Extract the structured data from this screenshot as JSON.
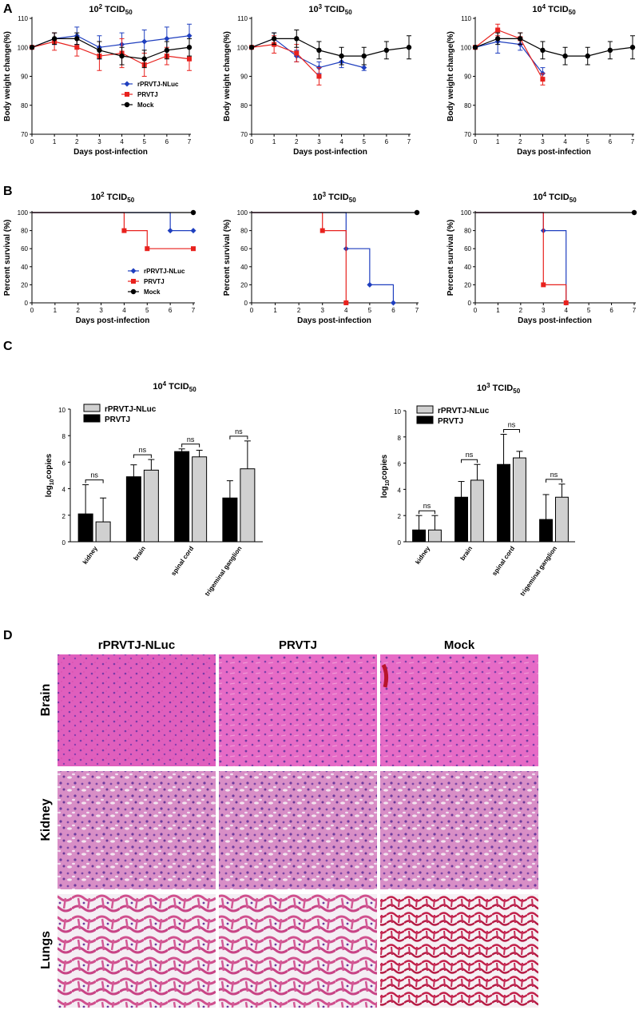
{
  "panel_letters": [
    "A",
    "B",
    "C",
    "D"
  ],
  "colors": {
    "rPRVTJ-NLuc": "#1f3fbf",
    "PRVTJ": "#e8211d",
    "Mock": "#000000",
    "bar_prvtj": "#000000",
    "bar_nluc": "#d0d0d0"
  },
  "chart_data": [
    {
      "panel": "A",
      "type": "line",
      "title": "10^2 TCID50",
      "xlabel": "Days post-infection",
      "ylabel": "Body weight change(%)",
      "xlim": [
        0,
        7
      ],
      "ylim": [
        70,
        110
      ],
      "xticks": [
        "0",
        "1",
        "2",
        "3",
        "4",
        "5",
        "6",
        "7"
      ],
      "yticks": [
        "70",
        "80",
        "90",
        "100",
        "110"
      ],
      "legend": [
        "rPRVTJ-NLuc",
        "PRVTJ",
        "Mock"
      ],
      "series": [
        {
          "name": "rPRVTJ-NLuc",
          "x": [
            0,
            1,
            2,
            3,
            4,
            5,
            6,
            7
          ],
          "y": [
            100,
            103,
            104,
            100,
            101,
            102,
            103,
            104
          ],
          "err": [
            0,
            2,
            3,
            4,
            4,
            4,
            4,
            4
          ]
        },
        {
          "name": "PRVTJ",
          "x": [
            0,
            1,
            2,
            3,
            4,
            5,
            6,
            7
          ],
          "y": [
            100,
            102,
            100,
            97,
            98,
            94,
            97,
            96
          ],
          "err": [
            0,
            3,
            3,
            5,
            5,
            4,
            3,
            4
          ]
        },
        {
          "name": "Mock",
          "x": [
            0,
            1,
            2,
            3,
            4,
            5,
            6,
            7
          ],
          "y": [
            100,
            103,
            103,
            99,
            97,
            96,
            99,
            100
          ],
          "err": [
            0,
            2,
            2,
            3,
            3,
            3,
            3,
            3
          ]
        }
      ]
    },
    {
      "panel": "A",
      "type": "line",
      "title": "10^3 TCID50",
      "xlabel": "Days post-infection",
      "ylabel": "Body weight change(%)",
      "xlim": [
        0,
        7
      ],
      "ylim": [
        70,
        110
      ],
      "xticks": [
        "0",
        "1",
        "2",
        "3",
        "4",
        "5",
        "6",
        "7"
      ],
      "yticks": [
        "70",
        "80",
        "90",
        "100",
        "110"
      ],
      "series": [
        {
          "name": "rPRVTJ-NLuc",
          "x": [
            0,
            1,
            2,
            3,
            4,
            5
          ],
          "y": [
            100,
            103,
            97,
            93,
            95,
            93
          ],
          "err": [
            0,
            2,
            2,
            2,
            2,
            1
          ]
        },
        {
          "name": "PRVTJ",
          "x": [
            0,
            1,
            2,
            3
          ],
          "y": [
            100,
            101,
            98,
            90
          ],
          "err": [
            0,
            3,
            3,
            3
          ]
        },
        {
          "name": "Mock",
          "x": [
            0,
            1,
            2,
            3,
            4,
            5,
            6,
            7
          ],
          "y": [
            100,
            103,
            103,
            99,
            97,
            97,
            99,
            100
          ],
          "err": [
            0,
            2,
            3,
            3,
            3,
            3,
            3,
            4
          ]
        }
      ]
    },
    {
      "panel": "A",
      "type": "line",
      "title": "10^4 TCID50",
      "xlabel": "Days post-infection",
      "ylabel": "Body weight change(%)",
      "xlim": [
        0,
        7
      ],
      "ylim": [
        70,
        110
      ],
      "xticks": [
        "0",
        "1",
        "2",
        "3",
        "4",
        "5",
        "6",
        "7"
      ],
      "yticks": [
        "70",
        "80",
        "90",
        "100",
        "110"
      ],
      "series": [
        {
          "name": "rPRVTJ-NLuc",
          "x": [
            0,
            1,
            2,
            3
          ],
          "y": [
            100,
            102,
            101,
            91
          ],
          "err": [
            0,
            4,
            2,
            2
          ]
        },
        {
          "name": "PRVTJ",
          "x": [
            0,
            1,
            2,
            3
          ],
          "y": [
            100,
            106,
            103,
            89
          ],
          "err": [
            0,
            2,
            2,
            2
          ]
        },
        {
          "name": "Mock",
          "x": [
            0,
            1,
            2,
            3,
            4,
            5,
            6,
            7
          ],
          "y": [
            100,
            103,
            103,
            99,
            97,
            97,
            99,
            100
          ],
          "err": [
            0,
            2,
            2,
            3,
            3,
            3,
            3,
            4
          ]
        }
      ]
    },
    {
      "panel": "B",
      "type": "line",
      "step": true,
      "title": "10^2 TCID50",
      "xlabel": "Days post-infection",
      "ylabel": "Percent survival (%)",
      "xlim": [
        0,
        7
      ],
      "ylim": [
        0,
        100
      ],
      "xticks": [
        "0",
        "1",
        "2",
        "3",
        "4",
        "5",
        "6",
        "7"
      ],
      "yticks": [
        "0",
        "20",
        "40",
        "60",
        "80",
        "100"
      ],
      "legend": [
        "rPRVTJ-NLuc",
        "PRVTJ",
        "Mock"
      ],
      "series": [
        {
          "name": "rPRVTJ-NLuc",
          "x": [
            0,
            6,
            7
          ],
          "y": [
            100,
            80,
            80
          ],
          "markers_x": [
            6,
            7
          ]
        },
        {
          "name": "PRVTJ",
          "x": [
            0,
            4,
            5,
            7
          ],
          "y": [
            100,
            80,
            60,
            60
          ],
          "markers_x": [
            4,
            5,
            7
          ]
        },
        {
          "name": "Mock",
          "x": [
            0,
            7
          ],
          "y": [
            100,
            100
          ],
          "markers_x": [
            7
          ]
        }
      ]
    },
    {
      "panel": "B",
      "type": "line",
      "step": true,
      "title": "10^3 TCID50",
      "xlabel": "Days post-infection",
      "ylabel": "Percent survival (%)",
      "xlim": [
        0,
        7
      ],
      "ylim": [
        0,
        100
      ],
      "xticks": [
        "0",
        "1",
        "2",
        "3",
        "4",
        "5",
        "6",
        "7"
      ],
      "yticks": [
        "0",
        "20",
        "40",
        "60",
        "80",
        "100"
      ],
      "series": [
        {
          "name": "rPRVTJ-NLuc",
          "x": [
            0,
            4,
            5,
            6
          ],
          "y": [
            100,
            60,
            20,
            0
          ],
          "markers_x": [
            4,
            5,
            6
          ]
        },
        {
          "name": "PRVTJ",
          "x": [
            0,
            3,
            4
          ],
          "y": [
            100,
            80,
            0
          ],
          "markers_x": [
            3,
            4
          ]
        },
        {
          "name": "Mock",
          "x": [
            0,
            7
          ],
          "y": [
            100,
            100
          ],
          "markers_x": [
            7
          ]
        }
      ]
    },
    {
      "panel": "B",
      "type": "line",
      "step": true,
      "title": "10^4 TCID50",
      "xlabel": "Days post-infection",
      "ylabel": "Percent survival (%)",
      "xlim": [
        0,
        7
      ],
      "ylim": [
        0,
        100
      ],
      "xticks": [
        "0",
        "1",
        "2",
        "3",
        "4",
        "5",
        "6",
        "7"
      ],
      "yticks": [
        "0",
        "20",
        "40",
        "60",
        "80",
        "100"
      ],
      "series": [
        {
          "name": "rPRVTJ-NLuc",
          "x": [
            0,
            3,
            4
          ],
          "y": [
            100,
            80,
            0
          ],
          "markers_x": [
            3,
            4
          ]
        },
        {
          "name": "PRVTJ",
          "x": [
            0,
            3,
            4
          ],
          "y": [
            100,
            20,
            0
          ],
          "markers_x": [
            3,
            4
          ]
        },
        {
          "name": "Mock",
          "x": [
            0,
            7
          ],
          "y": [
            100,
            100
          ],
          "markers_x": [
            7
          ]
        }
      ]
    },
    {
      "panel": "C",
      "type": "bar",
      "title": "10^4 TCID50",
      "ylabel": "log10copies",
      "ylim": [
        0,
        10
      ],
      "yticks": [
        "0",
        "2",
        "4",
        "6",
        "8",
        "10"
      ],
      "categories": [
        "kidney",
        "brain",
        "spinal cord",
        "trigeminal ganglion"
      ],
      "legend": [
        "rPRVTJ-NLuc",
        "PRVTJ"
      ],
      "annotations": [
        "ns",
        "ns",
        "ns",
        "ns"
      ],
      "series": [
        {
          "name": "PRVTJ",
          "values": [
            2.1,
            4.9,
            6.8,
            3.3
          ],
          "err": [
            2.2,
            0.9,
            0.2,
            1.3
          ]
        },
        {
          "name": "rPRVTJ-NLuc",
          "values": [
            1.5,
            5.4,
            6.4,
            5.5
          ],
          "err": [
            1.8,
            0.8,
            0.5,
            2.1
          ]
        }
      ]
    },
    {
      "panel": "C",
      "type": "bar",
      "title": "10^3 TCID50",
      "ylabel": "log10copies",
      "ylim": [
        0,
        10
      ],
      "yticks": [
        "0",
        "2",
        "4",
        "6",
        "8",
        "10"
      ],
      "categories": [
        "kidney",
        "brain",
        "spinal cord",
        "trigeminal ganglion"
      ],
      "legend": [
        "rPRVTJ-NLuc",
        "PRVTJ"
      ],
      "annotations": [
        "ns",
        "ns",
        "ns",
        "ns"
      ],
      "series": [
        {
          "name": "PRVTJ",
          "values": [
            0.9,
            3.4,
            5.9,
            1.7
          ],
          "err": [
            1.1,
            1.2,
            2.3,
            1.9
          ]
        },
        {
          "name": "rPRVTJ-NLuc",
          "values": [
            0.9,
            4.7,
            6.4,
            3.4
          ],
          "err": [
            1.1,
            1.2,
            0.5,
            1.0
          ]
        }
      ]
    }
  ],
  "histology": {
    "row_labels": [
      "Brain",
      "Kidney",
      "Lungs"
    ],
    "column_labels": [
      "rPRVTJ-NLuc",
      "PRVTJ",
      "Mock"
    ]
  }
}
